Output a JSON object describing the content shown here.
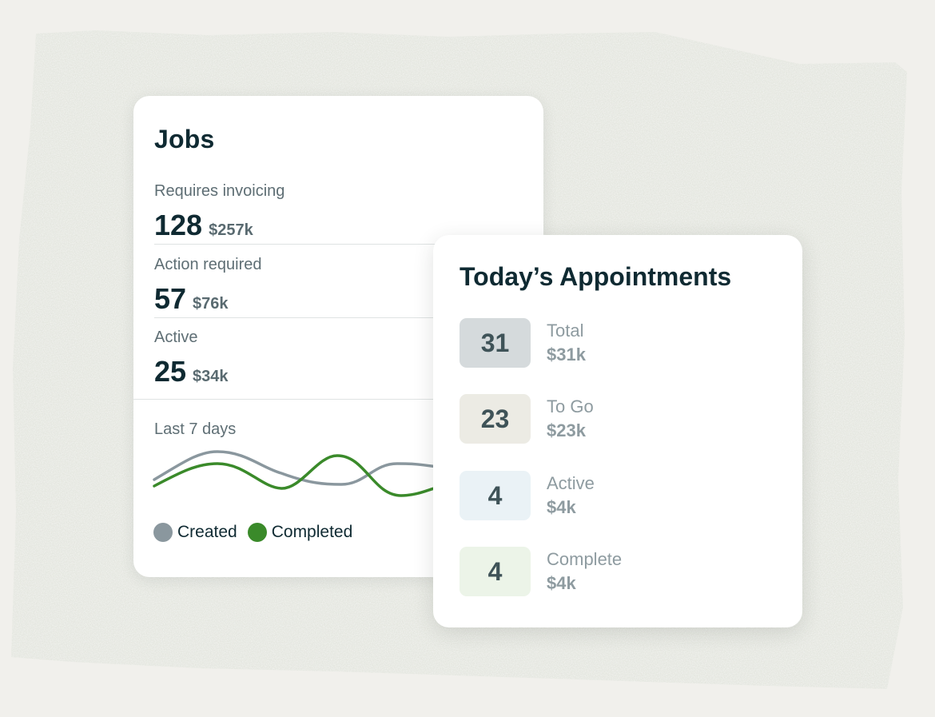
{
  "colors": {
    "background": "#f1f0ec",
    "card": "#ffffff",
    "heading": "#0f2a32",
    "created_series": "#8a979e",
    "completed_series": "#3a8a2a"
  },
  "jobs": {
    "title": "Jobs",
    "rows": [
      {
        "label": "Requires invoicing",
        "count": "128",
        "amount": "$257k"
      },
      {
        "label": "Action required",
        "count": "57",
        "amount": "$76k"
      },
      {
        "label": "Active",
        "count": "25",
        "amount": "$34k"
      }
    ],
    "trend_label": "Last 7 days",
    "legend": [
      {
        "label": "Created",
        "color": "#8a979e"
      },
      {
        "label": "Completed",
        "color": "#3a8a2a"
      }
    ]
  },
  "appointments": {
    "title": "Today’s Appointments",
    "items": [
      {
        "count": "31",
        "label": "Total",
        "amount": "$31k",
        "badge_color": "#d5dadc"
      },
      {
        "count": "23",
        "label": "To Go",
        "amount": "$23k",
        "badge_color": "#ecebe4"
      },
      {
        "count": "4",
        "label": "Active",
        "amount": "$4k",
        "badge_color": "#eaf2f6"
      },
      {
        "count": "4",
        "label": "Complete",
        "amount": "$4k",
        "badge_color": "#ecf4e8"
      }
    ]
  }
}
